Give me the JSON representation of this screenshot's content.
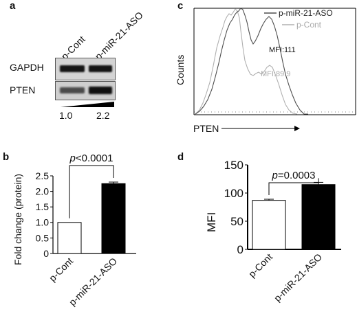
{
  "panel_a": {
    "label": "a",
    "lanes": [
      "p-Cont",
      "p-miR-21-ASO"
    ],
    "rows": [
      "GAPDH",
      "PTEN"
    ],
    "ratio_left": "1.0",
    "ratio_right": "2.2"
  },
  "panel_b": {
    "label": "b",
    "pvalue": "p<0.0001"
  },
  "panel_c": {
    "label": "c"
  },
  "panel_d": {
    "label": "d",
    "pvalue": "p=0.0003"
  },
  "chart_data": [
    {
      "type": "bar",
      "panel": "b",
      "categories": [
        "p-Cont",
        "p-miR-21-ASO"
      ],
      "values": [
        1.0,
        2.25
      ],
      "errors": [
        0,
        0.05
      ],
      "fills": [
        "#ffffff",
        "#000000"
      ],
      "ylabel": "Fold change (protein)",
      "ylim": [
        0,
        2.5
      ],
      "yticks": [
        "0",
        "0.5",
        "1.0",
        "1.5",
        "2.0",
        "2.5"
      ],
      "annotation": "p<0.0001"
    },
    {
      "type": "line",
      "panel": "c",
      "xlabel": "PTEN",
      "ylabel": "Counts",
      "legend": [
        "p-miR-21-ASO",
        "p-Cont"
      ],
      "legend_position": "top-right",
      "series_colors": [
        "#555555",
        "#aaaaaa"
      ],
      "annotations": [
        "MFI:111",
        "MFI:89.9"
      ]
    },
    {
      "type": "bar",
      "panel": "d",
      "categories": [
        "p-Cont",
        "p-miR-21-ASO"
      ],
      "values": [
        87,
        115
      ],
      "errors": [
        2,
        4
      ],
      "fills": [
        "#ffffff",
        "#000000"
      ],
      "ylabel": "MFI",
      "ylim": [
        0,
        150
      ],
      "yticks": [
        "0",
        "50",
        "100",
        "150"
      ],
      "annotation": "p=0.0003"
    }
  ]
}
